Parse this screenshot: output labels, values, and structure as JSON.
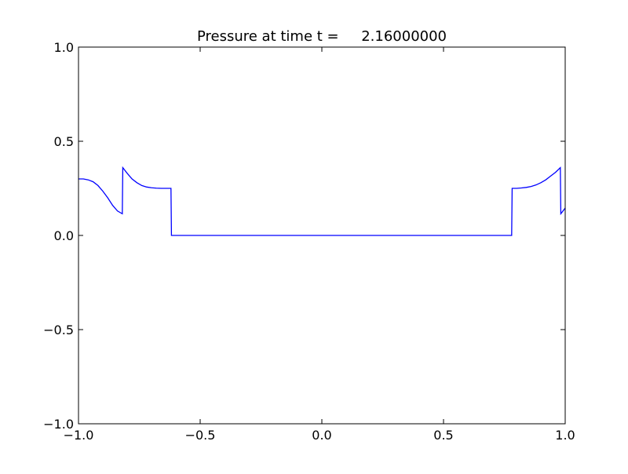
{
  "chart_data": {
    "type": "line",
    "title": "Pressure at time t =     2.16000000",
    "xlabel": "",
    "ylabel": "",
    "xlim": [
      -1.0,
      1.0
    ],
    "ylim": [
      -1.0,
      1.0
    ],
    "xticks": [
      -1.0,
      -0.5,
      0.0,
      0.5,
      1.0
    ],
    "xtick_labels": [
      "−1.0",
      "−0.5",
      "0.0",
      "0.5",
      "1.0"
    ],
    "yticks": [
      -1.0,
      -0.5,
      0.0,
      0.5,
      1.0
    ],
    "ytick_labels": [
      "−1.0",
      "−0.5",
      "0.0",
      "0.5",
      "1.0"
    ],
    "grid": false,
    "legend": "none",
    "series": [
      {
        "color": "#0000ff",
        "x": [
          -1.0,
          -0.98,
          -0.96,
          -0.94,
          -0.92,
          -0.9,
          -0.88,
          -0.86,
          -0.84,
          -0.82,
          -0.818,
          -0.8,
          -0.78,
          -0.76,
          -0.74,
          -0.72,
          -0.7,
          -0.68,
          -0.66,
          -0.64,
          -0.62,
          -0.618,
          0.78,
          0.782,
          0.8,
          0.82,
          0.84,
          0.86,
          0.88,
          0.9,
          0.92,
          0.94,
          0.96,
          0.98,
          0.982,
          1.0
        ],
        "y": [
          0.3,
          0.3,
          0.295,
          0.285,
          0.265,
          0.235,
          0.2,
          0.16,
          0.13,
          0.115,
          0.36,
          0.33,
          0.3,
          0.28,
          0.265,
          0.257,
          0.253,
          0.251,
          0.25,
          0.25,
          0.25,
          0.0,
          0.0,
          0.25,
          0.25,
          0.252,
          0.255,
          0.26,
          0.268,
          0.28,
          0.295,
          0.315,
          0.335,
          0.36,
          0.115,
          0.145
        ]
      }
    ]
  }
}
